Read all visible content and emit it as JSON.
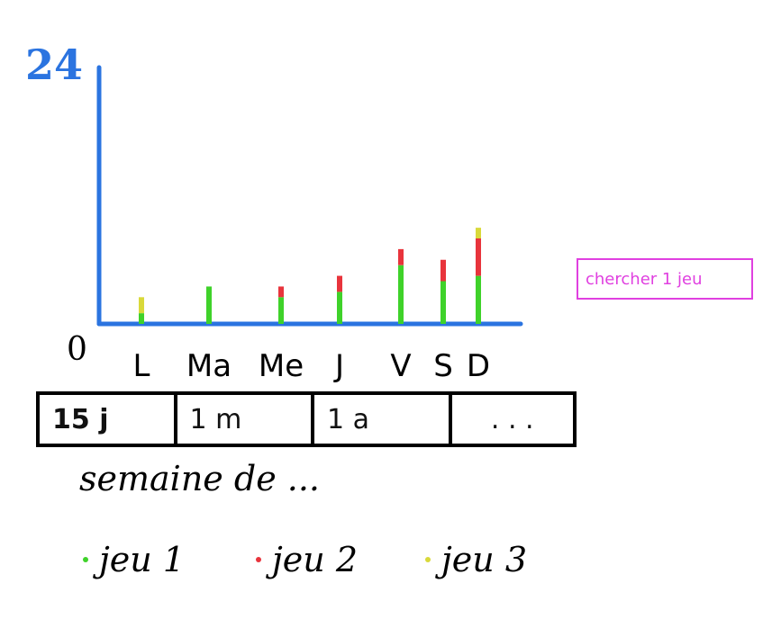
{
  "chart_data": {
    "type": "bar",
    "stacked": true,
    "ytick_labels": [
      "0",
      "24"
    ],
    "ylim": [
      0,
      24
    ],
    "categories": [
      "L",
      "Ma",
      "Me",
      "J",
      "V",
      "S",
      "D"
    ],
    "series": [
      {
        "name": "jeu 1",
        "color": "#3fd22a",
        "values": [
          1,
          3.5,
          2.5,
          3,
          5.5,
          4,
          4.5
        ]
      },
      {
        "name": "jeu 2",
        "color": "#e8343c",
        "values": [
          0,
          0,
          1,
          1.5,
          1.5,
          2,
          3.5
        ]
      },
      {
        "name": "jeu 3",
        "color": "#d9d93a",
        "values": [
          1.5,
          0,
          0,
          0,
          0,
          0,
          1
        ]
      }
    ],
    "axis_color": "#2b74e0"
  },
  "period_tabs": [
    {
      "label": "15 j"
    },
    {
      "label": "1 m"
    },
    {
      "label": "1 a"
    },
    {
      "label": ". . ."
    }
  ],
  "period_caption": "semaine de ...",
  "search_button": {
    "label": "chercher 1 jeu",
    "color": "#e040e0"
  },
  "legend": [
    {
      "label": "jeu 1",
      "color": "#3fd22a"
    },
    {
      "label": "jeu 2",
      "color": "#e8343c"
    },
    {
      "label": "jeu 3",
      "color": "#d9d93a"
    }
  ]
}
